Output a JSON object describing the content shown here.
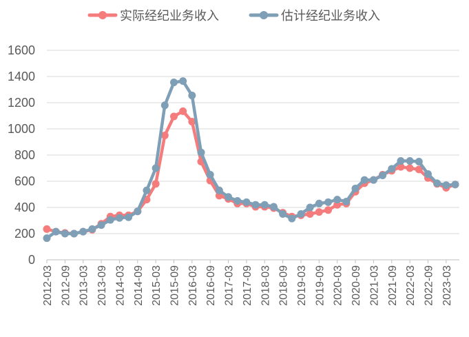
{
  "chart_data": {
    "type": "line",
    "title": "",
    "xlabel": "",
    "ylabel": "",
    "ylim": [
      0,
      1600
    ],
    "yticks": [
      0,
      200,
      400,
      600,
      800,
      1000,
      1200,
      1400,
      1600
    ],
    "grid": "horizontal",
    "legend_position": "top-center",
    "x": [
      "2012-03",
      "2012-06",
      "2012-09",
      "2012-12",
      "2013-03",
      "2013-06",
      "2013-09",
      "2013-12",
      "2014-03",
      "2014-06",
      "2014-09",
      "2014-12",
      "2015-03",
      "2015-06",
      "2015-09",
      "2015-12",
      "2016-03",
      "2016-06",
      "2016-09",
      "2016-12",
      "2017-03",
      "2017-06",
      "2017-09",
      "2017-12",
      "2018-03",
      "2018-06",
      "2018-09",
      "2018-12",
      "2019-03",
      "2019-06",
      "2019-09",
      "2019-12",
      "2020-03",
      "2020-06",
      "2020-09",
      "2020-12",
      "2021-03",
      "2021-06",
      "2021-09",
      "2021-12",
      "2022-03",
      "2022-06",
      "2022-09",
      "2022-12",
      "2023-03",
      "2023-06"
    ],
    "xtick_labels": [
      "2012-03",
      "2012-09",
      "2013-03",
      "2013-09",
      "2014-03",
      "2014-09",
      "2015-03",
      "2015-09",
      "2016-03",
      "2016-09",
      "2017-03",
      "2017-09",
      "2018-03",
      "2018-09",
      "2019-03",
      "2019-09",
      "2020-03",
      "2020-09",
      "2021-03",
      "2021-09",
      "2022-03",
      "2022-09",
      "2023-03"
    ],
    "series": [
      {
        "name": "实际经纪业务收入",
        "color": "#F47C7C",
        "values": [
          235,
          215,
          205,
          200,
          215,
          230,
          275,
          330,
          340,
          340,
          370,
          460,
          580,
          950,
          1095,
          1135,
          1055,
          750,
          605,
          490,
          465,
          430,
          430,
          405,
          405,
          395,
          360,
          330,
          340,
          350,
          365,
          380,
          420,
          430,
          520,
          585,
          610,
          650,
          680,
          710,
          700,
          690,
          625,
          580,
          550,
          575
        ]
      },
      {
        "name": "估计经纪业务收入",
        "color": "#7F9FB7",
        "values": [
          165,
          215,
          200,
          200,
          215,
          235,
          265,
          305,
          320,
          325,
          370,
          530,
          700,
          1180,
          1355,
          1365,
          1255,
          820,
          650,
          530,
          480,
          450,
          440,
          420,
          420,
          405,
          350,
          315,
          350,
          400,
          430,
          440,
          460,
          445,
          545,
          610,
          610,
          645,
          695,
          755,
          755,
          750,
          655,
          585,
          570,
          575
        ]
      }
    ]
  }
}
